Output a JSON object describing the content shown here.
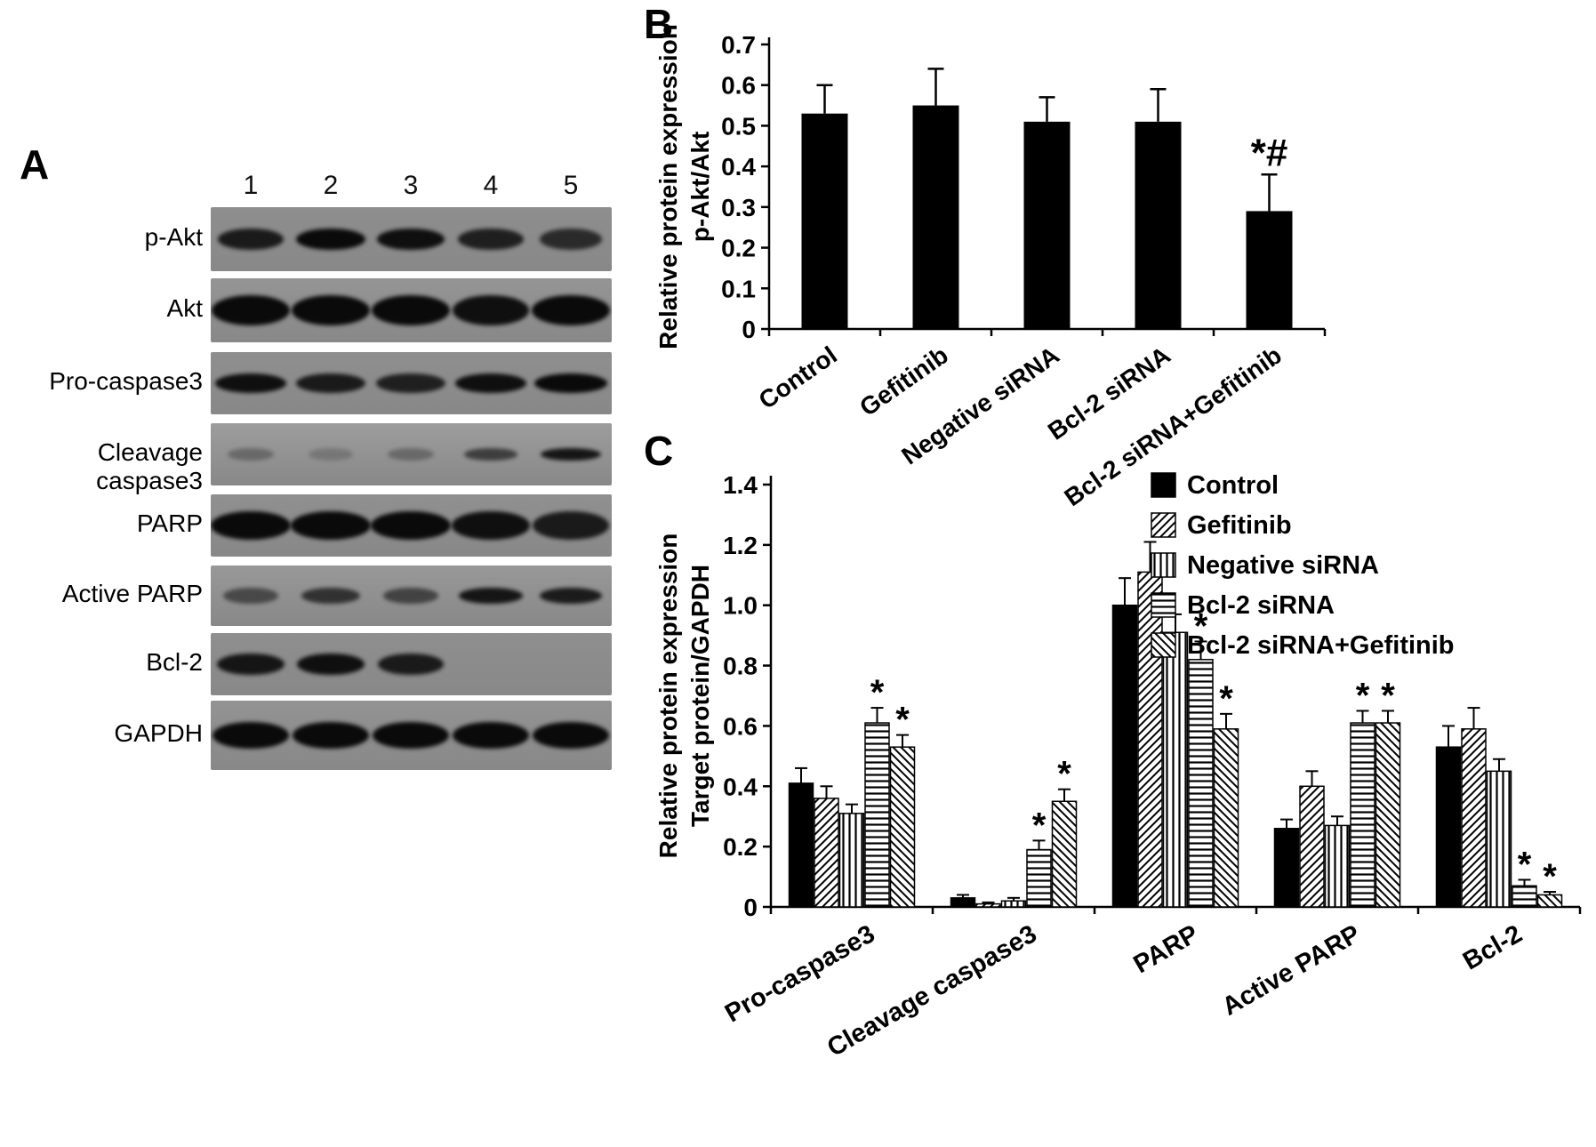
{
  "panels": {
    "a_label": "A",
    "b_label": "B",
    "c_label": "C"
  },
  "blot": {
    "lane_numbers": [
      "1",
      "2",
      "3",
      "4",
      "5"
    ],
    "rows": [
      {
        "label": "p-Akt",
        "band_height": 24,
        "band_width": 78,
        "intensities": [
          0.85,
          1.0,
          0.95,
          0.8,
          0.7
        ]
      },
      {
        "label": "Akt",
        "band_height": 34,
        "band_width": 88,
        "intensities": [
          1.0,
          1.0,
          1.0,
          0.95,
          1.0
        ]
      },
      {
        "label": "Pro-caspase3",
        "band_height": 22,
        "band_width": 82,
        "intensities": [
          0.95,
          0.85,
          0.8,
          0.95,
          1.0
        ]
      },
      {
        "label": "Cleavage caspase3",
        "band_height": 14,
        "band_width": 70,
        "intensities": [
          0.18,
          0.06,
          0.18,
          0.55,
          0.9
        ]
      },
      {
        "label": "PARP",
        "band_height": 32,
        "band_width": 90,
        "intensities": [
          1.0,
          1.0,
          1.0,
          0.95,
          0.85
        ]
      },
      {
        "label": "Active PARP",
        "band_height": 18,
        "band_width": 74,
        "intensities": [
          0.45,
          0.65,
          0.5,
          0.9,
          0.85
        ]
      },
      {
        "label": "Bcl-2",
        "band_height": 24,
        "band_width": 78,
        "intensities": [
          0.9,
          0.95,
          0.85,
          0,
          0
        ]
      },
      {
        "label": "GAPDH",
        "band_height": 30,
        "band_width": 86,
        "intensities": [
          1.0,
          1.0,
          1.0,
          1.0,
          1.0
        ]
      }
    ]
  },
  "chart_data": [
    {
      "type": "bar",
      "panel": "B",
      "title": "",
      "ylabel_line1": "Relative protein expression",
      "ylabel_line2": "p-Akt/Akt",
      "categories": [
        "Control",
        "Gefitinib",
        "Negative siRNA",
        "Bcl-2 siRNA",
        "Bcl-2 siRNA+Gefitinib"
      ],
      "values": [
        0.53,
        0.55,
        0.51,
        0.51,
        0.29
      ],
      "errors": [
        0.07,
        0.09,
        0.06,
        0.08,
        0.09
      ],
      "annotations": [
        "",
        "",
        "",
        "",
        "*#"
      ],
      "ylim": [
        0,
        0.7
      ],
      "ytick_step": 0.1,
      "bar_color": "#000000",
      "grid": false,
      "legend_position": "none"
    },
    {
      "type": "bar",
      "panel": "C",
      "title": "",
      "ylabel_line1": "Relative protein expression",
      "ylabel_line2": "Target protein/GAPDH",
      "categories": [
        "Pro-caspase3",
        "Cleavage caspase3",
        "PARP",
        "Active PARP",
        "Bcl-2"
      ],
      "series": [
        {
          "name": "Control",
          "pattern": "solid",
          "values": [
            0.41,
            0.03,
            1.0,
            0.26,
            0.53
          ],
          "errors": [
            0.05,
            0.01,
            0.09,
            0.03,
            0.07
          ],
          "sig": [
            "",
            "",
            "",
            "",
            ""
          ]
        },
        {
          "name": "Gefitinib",
          "pattern": "diag",
          "values": [
            0.36,
            0.01,
            1.11,
            0.4,
            0.59
          ],
          "errors": [
            0.04,
            0.005,
            0.1,
            0.05,
            0.07
          ],
          "sig": [
            "",
            "",
            "",
            "",
            ""
          ]
        },
        {
          "name": "Negative siRNA",
          "pattern": "vert",
          "values": [
            0.31,
            0.02,
            0.91,
            0.27,
            0.45
          ],
          "errors": [
            0.03,
            0.01,
            0.06,
            0.03,
            0.04
          ],
          "sig": [
            "",
            "",
            "",
            "",
            ""
          ]
        },
        {
          "name": "Bcl-2 siRNA",
          "pattern": "horiz",
          "values": [
            0.61,
            0.19,
            0.82,
            0.61,
            0.07
          ],
          "errors": [
            0.05,
            0.03,
            0.06,
            0.04,
            0.02
          ],
          "sig": [
            "*",
            "*",
            "*",
            "*",
            "*"
          ]
        },
        {
          "name": "Bcl-2 siRNA+Gefitinib",
          "pattern": "backdiag",
          "values": [
            0.53,
            0.35,
            0.59,
            0.61,
            0.04
          ],
          "errors": [
            0.04,
            0.04,
            0.05,
            0.04,
            0.01
          ],
          "sig": [
            "*",
            "*",
            "*",
            "*",
            "*"
          ]
        }
      ],
      "ylim": [
        0,
        1.4
      ],
      "ytick_step": 0.2,
      "bar_color": "#000000",
      "grid": false,
      "legend_position": "top-right"
    }
  ]
}
